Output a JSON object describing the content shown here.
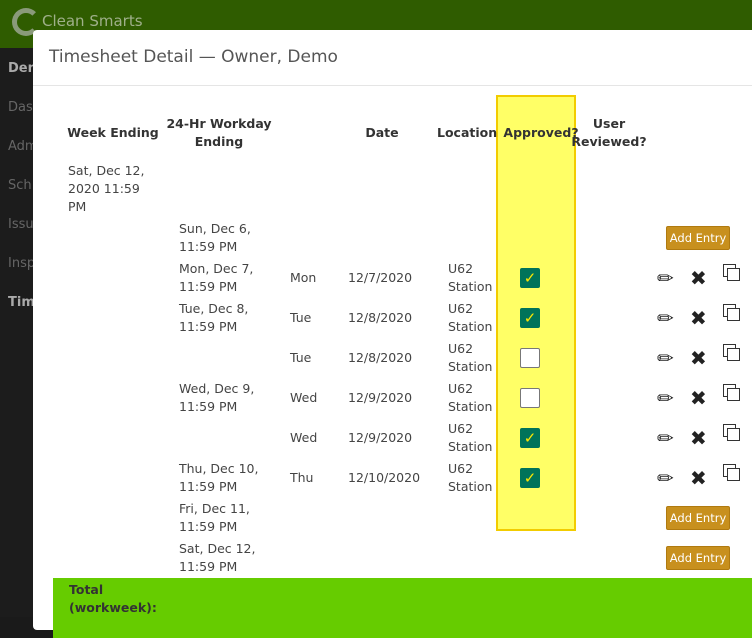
{
  "app": {
    "brand": "Clean Smarts"
  },
  "sidebar": {
    "items": [
      "Dem",
      "Das",
      "Adm",
      "Sch",
      "Issu",
      "Insp",
      "Tim"
    ]
  },
  "modal": {
    "title": "Timesheet Detail — Owner, Demo"
  },
  "table": {
    "headers": {
      "week_ending": "Week Ending",
      "workday": "24-Hr Workday Ending",
      "date": "Date",
      "location": "Location",
      "approved": "Approved?",
      "user_reviewed": "User Reviewed?"
    },
    "week_ending_value": "Sat, Dec 12, 2020 11:59 PM",
    "add_entry_label": "Add Entry",
    "rows": [
      {
        "workday": "Sun, Dec 6, 11:59 PM",
        "add_entry": true
      },
      {
        "workday": "Mon, Dec 7, 11:59 PM",
        "day": "Mon",
        "date": "12/7/2020",
        "location": "U62 Station",
        "approved": true
      },
      {
        "workday": "Tue, Dec 8, 11:59 PM",
        "day": "Tue",
        "date": "12/8/2020",
        "location": "U62 Station",
        "approved": true
      },
      {
        "workday": "",
        "day": "Tue",
        "date": "12/8/2020",
        "location": "U62 Station",
        "approved": false
      },
      {
        "workday": "Wed, Dec 9, 11:59 PM",
        "day": "Wed",
        "date": "12/9/2020",
        "location": "U62 Station",
        "approved": false
      },
      {
        "workday": "",
        "day": "Wed",
        "date": "12/9/2020",
        "location": "U62 Station",
        "approved": true
      },
      {
        "workday": "Thu, Dec 10, 11:59 PM",
        "day": "Thu",
        "date": "12/10/2020",
        "location": "U62 Station",
        "approved": true
      },
      {
        "workday": "Fri, Dec 11, 11:59 PM",
        "add_entry": true
      },
      {
        "workday": "Sat, Dec 12, 11:59 PM",
        "add_entry": true
      }
    ],
    "total_label": "Total (workweek):"
  },
  "colors": {
    "topbar": "#2f5c00",
    "highlight": "#ffff66",
    "checkbox": "#00735a",
    "button": "#c8901e",
    "total": "#66cc00"
  }
}
